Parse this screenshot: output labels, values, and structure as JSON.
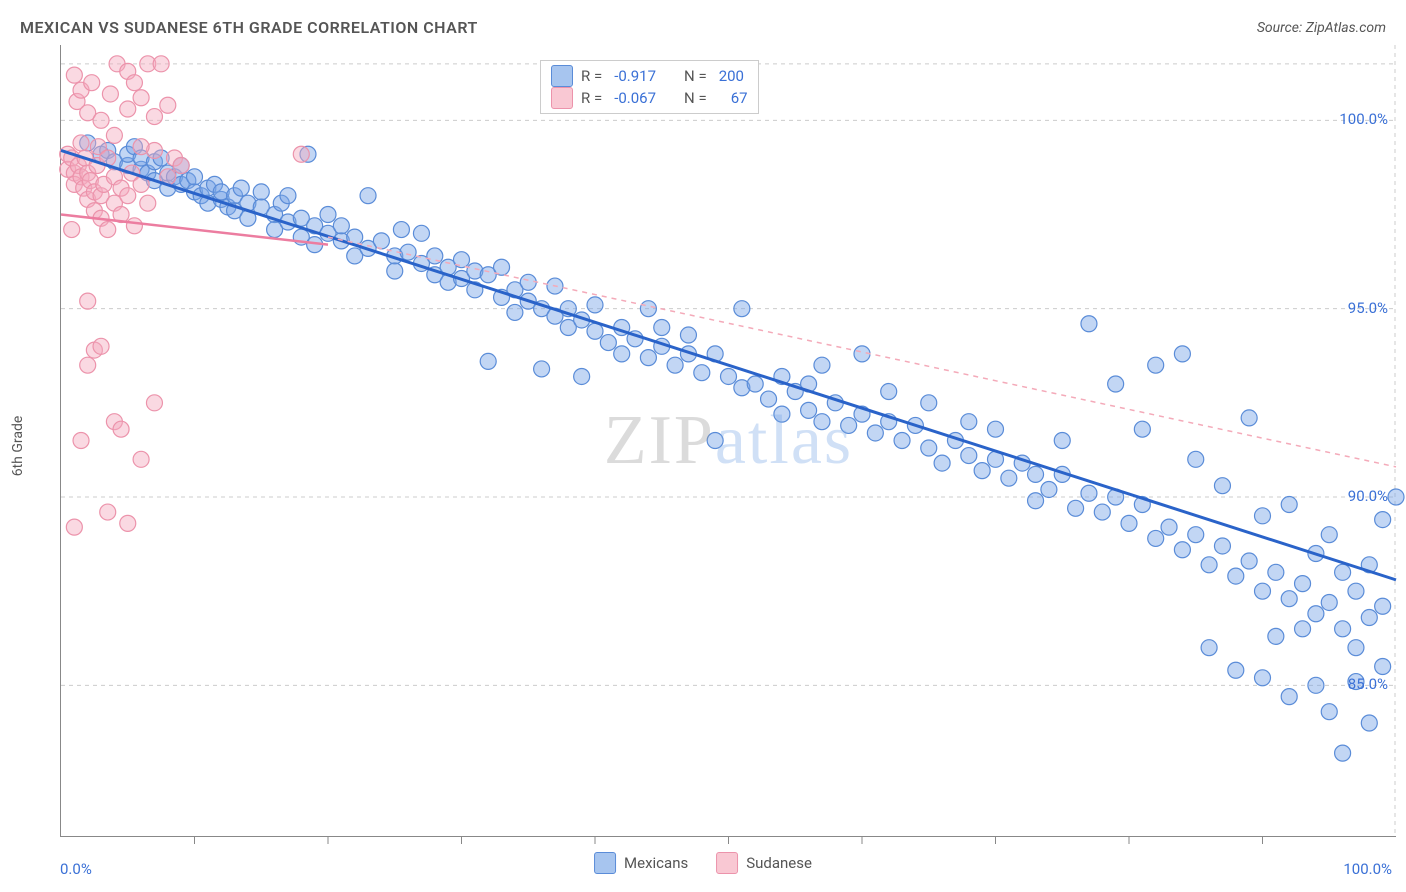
{
  "title": "MEXICAN VS SUDANESE 6TH GRADE CORRELATION CHART",
  "source": "Source: ZipAtlas.com",
  "ylabel": "6th Grade",
  "watermark_zip": "ZIP",
  "watermark_atlas": "atlas",
  "xaxis": {
    "min_label": "0.0%",
    "max_label": "100.0%",
    "min": 0,
    "max": 100
  },
  "yaxis": {
    "min": 81,
    "max": 102,
    "ticks": [
      {
        "v": 100,
        "label": "100.0%"
      },
      {
        "v": 95,
        "label": "95.0%"
      },
      {
        "v": 90,
        "label": "90.0%"
      },
      {
        "v": 85,
        "label": "85.0%"
      }
    ]
  },
  "grid_color": "#cccccc",
  "grid_dash": "4,4",
  "series": [
    {
      "name": "Mexicans",
      "swatch_fill": "#a7c5ef",
      "swatch_stroke": "#5a8cd8",
      "point_fill": "rgba(120,165,230,0.45)",
      "point_stroke": "#5a8cd8",
      "point_r": 8,
      "trend_color": "#2a63c9",
      "trend_width": 3,
      "trend_dash": "",
      "trend_x1": 0,
      "trend_y1": 99.2,
      "trend_x2": 100,
      "trend_y2": 87.8,
      "extrap_dash": "5,5",
      "extrap_x1": 20,
      "extrap_y1": 96.9,
      "extrap_x2": 100,
      "extrap_y2": 90.8,
      "extrap_color": "#f4aab9",
      "R_label": "R =",
      "R": "-0.917",
      "N_label": "N =",
      "N": "200",
      "data": [
        [
          2,
          99.4
        ],
        [
          3,
          99.1
        ],
        [
          3.5,
          99.2
        ],
        [
          4,
          98.9
        ],
        [
          5,
          98.8
        ],
        [
          5,
          99.1
        ],
        [
          5.5,
          99.3
        ],
        [
          6,
          98.7
        ],
        [
          6,
          99.0
        ],
        [
          6.5,
          98.6
        ],
        [
          7,
          98.9
        ],
        [
          7,
          98.4
        ],
        [
          7.5,
          99.0
        ],
        [
          8,
          98.6
        ],
        [
          8,
          98.2
        ],
        [
          8.5,
          98.5
        ],
        [
          9,
          98.3
        ],
        [
          9,
          98.8
        ],
        [
          9.5,
          98.4
        ],
        [
          10,
          98.1
        ],
        [
          10,
          98.5
        ],
        [
          10.5,
          98.0
        ],
        [
          11,
          98.2
        ],
        [
          11,
          97.8
        ],
        [
          11.5,
          98.3
        ],
        [
          12,
          97.9
        ],
        [
          12,
          98.1
        ],
        [
          12.5,
          97.7
        ],
        [
          13,
          98.0
        ],
        [
          13,
          97.6
        ],
        [
          13.5,
          98.2
        ],
        [
          14,
          97.8
        ],
        [
          14,
          97.4
        ],
        [
          15,
          97.7
        ],
        [
          15,
          98.1
        ],
        [
          16,
          97.5
        ],
        [
          16,
          97.1
        ],
        [
          16.5,
          97.8
        ],
        [
          17,
          97.3
        ],
        [
          17,
          98.0
        ],
        [
          18,
          97.4
        ],
        [
          18,
          96.9
        ],
        [
          18.5,
          99.1
        ],
        [
          19,
          97.2
        ],
        [
          19,
          96.7
        ],
        [
          20,
          97.0
        ],
        [
          20,
          97.5
        ],
        [
          21,
          96.8
        ],
        [
          21,
          97.2
        ],
        [
          22,
          96.9
        ],
        [
          22,
          96.4
        ],
        [
          23,
          98.0
        ],
        [
          23,
          96.6
        ],
        [
          24,
          96.8
        ],
        [
          25,
          96.4
        ],
        [
          25,
          96.0
        ],
        [
          25.5,
          97.1
        ],
        [
          26,
          96.5
        ],
        [
          27,
          96.2
        ],
        [
          27,
          97.0
        ],
        [
          28,
          95.9
        ],
        [
          28,
          96.4
        ],
        [
          29,
          95.7
        ],
        [
          29,
          96.1
        ],
        [
          30,
          95.8
        ],
        [
          30,
          96.3
        ],
        [
          31,
          95.5
        ],
        [
          31,
          96.0
        ],
        [
          32,
          93.6
        ],
        [
          32,
          95.9
        ],
        [
          33,
          95.3
        ],
        [
          33,
          96.1
        ],
        [
          34,
          95.5
        ],
        [
          34,
          94.9
        ],
        [
          35,
          95.2
        ],
        [
          35,
          95.7
        ],
        [
          36,
          93.4
        ],
        [
          36,
          95.0
        ],
        [
          37,
          94.8
        ],
        [
          37,
          95.6
        ],
        [
          38,
          94.5
        ],
        [
          38,
          95.0
        ],
        [
          39,
          94.7
        ],
        [
          39,
          93.2
        ],
        [
          40,
          94.4
        ],
        [
          40,
          95.1
        ],
        [
          41,
          94.1
        ],
        [
          42,
          94.5
        ],
        [
          42,
          93.8
        ],
        [
          43,
          94.2
        ],
        [
          44,
          95.0
        ],
        [
          44,
          93.7
        ],
        [
          45,
          94.0
        ],
        [
          45,
          94.5
        ],
        [
          46,
          93.5
        ],
        [
          47,
          93.8
        ],
        [
          47,
          94.3
        ],
        [
          48,
          93.3
        ],
        [
          49,
          93.8
        ],
        [
          49,
          91.5
        ],
        [
          50,
          93.2
        ],
        [
          51,
          95.0
        ],
        [
          51,
          92.9
        ],
        [
          52,
          93.0
        ],
        [
          53,
          92.6
        ],
        [
          54,
          93.2
        ],
        [
          54,
          92.2
        ],
        [
          55,
          92.8
        ],
        [
          56,
          92.3
        ],
        [
          56,
          93.0
        ],
        [
          57,
          92.0
        ],
        [
          57,
          93.5
        ],
        [
          58,
          92.5
        ],
        [
          59,
          91.9
        ],
        [
          60,
          92.2
        ],
        [
          60,
          93.8
        ],
        [
          61,
          91.7
        ],
        [
          62,
          92.0
        ],
        [
          62,
          92.8
        ],
        [
          63,
          91.5
        ],
        [
          64,
          91.9
        ],
        [
          65,
          91.3
        ],
        [
          65,
          92.5
        ],
        [
          66,
          90.9
        ],
        [
          67,
          91.5
        ],
        [
          68,
          91.1
        ],
        [
          68,
          92.0
        ],
        [
          69,
          90.7
        ],
        [
          70,
          91.0
        ],
        [
          70,
          91.8
        ],
        [
          71,
          90.5
        ],
        [
          72,
          90.9
        ],
        [
          73,
          89.9
        ],
        [
          73,
          90.6
        ],
        [
          74,
          90.2
        ],
        [
          75,
          90.6
        ],
        [
          75,
          91.5
        ],
        [
          76,
          89.7
        ],
        [
          77,
          90.1
        ],
        [
          77,
          94.6
        ],
        [
          78,
          89.6
        ],
        [
          79,
          90.0
        ],
        [
          79,
          93.0
        ],
        [
          80,
          89.3
        ],
        [
          81,
          89.8
        ],
        [
          81,
          91.8
        ],
        [
          82,
          88.9
        ],
        [
          82,
          93.5
        ],
        [
          83,
          89.2
        ],
        [
          84,
          88.6
        ],
        [
          84,
          93.8
        ],
        [
          85,
          89.0
        ],
        [
          85,
          91.0
        ],
        [
          86,
          88.2
        ],
        [
          86,
          86.0
        ],
        [
          87,
          88.7
        ],
        [
          87,
          90.3
        ],
        [
          88,
          87.9
        ],
        [
          88,
          85.4
        ],
        [
          89,
          88.3
        ],
        [
          89,
          92.1
        ],
        [
          90,
          87.5
        ],
        [
          90,
          89.5
        ],
        [
          90,
          85.2
        ],
        [
          91,
          88.0
        ],
        [
          91,
          86.3
        ],
        [
          92,
          87.3
        ],
        [
          92,
          89.8
        ],
        [
          92,
          84.7
        ],
        [
          93,
          87.7
        ],
        [
          93,
          86.5
        ],
        [
          94,
          86.9
        ],
        [
          94,
          88.5
        ],
        [
          94,
          85.0
        ],
        [
          95,
          87.2
        ],
        [
          95,
          84.3
        ],
        [
          95,
          89.0
        ],
        [
          96,
          86.5
        ],
        [
          96,
          88.0
        ],
        [
          96,
          83.2
        ],
        [
          97,
          86.0
        ],
        [
          97,
          87.5
        ],
        [
          97,
          85.1
        ],
        [
          98,
          86.8
        ],
        [
          98,
          84.0
        ],
        [
          98,
          88.2
        ],
        [
          99,
          85.5
        ],
        [
          99,
          87.1
        ],
        [
          99,
          89.4
        ],
        [
          100,
          90.0
        ]
      ]
    },
    {
      "name": "Sudanese",
      "swatch_fill": "#f9c8d3",
      "swatch_stroke": "#ec93ab",
      "point_fill": "rgba(245,170,190,0.45)",
      "point_stroke": "#ec93ab",
      "point_r": 8,
      "trend_color": "#ec7da0",
      "trend_width": 2.5,
      "trend_dash": "",
      "trend_x1": 0,
      "trend_y1": 97.5,
      "trend_x2": 20,
      "trend_y2": 96.7,
      "R_label": "R =",
      "R": "-0.067",
      "N_label": "N =",
      "N": "67",
      "data": [
        [
          0.5,
          99.1
        ],
        [
          0.5,
          98.7
        ],
        [
          0.8,
          99.0
        ],
        [
          1,
          101.2
        ],
        [
          1,
          98.6
        ],
        [
          1,
          98.3
        ],
        [
          1.2,
          100.5
        ],
        [
          1.3,
          98.8
        ],
        [
          1.5,
          98.5
        ],
        [
          1.5,
          99.4
        ],
        [
          1.5,
          100.8
        ],
        [
          1.7,
          98.2
        ],
        [
          1.8,
          99.0
        ],
        [
          2,
          98.6
        ],
        [
          2,
          97.9
        ],
        [
          2,
          100.2
        ],
        [
          2.2,
          98.4
        ],
        [
          2.3,
          101.0
        ],
        [
          2.5,
          98.1
        ],
        [
          2.5,
          97.6
        ],
        [
          2.7,
          98.8
        ],
        [
          2.8,
          99.3
        ],
        [
          3,
          98.0
        ],
        [
          3,
          97.4
        ],
        [
          3,
          100.0
        ],
        [
          3.2,
          98.3
        ],
        [
          3.5,
          99.0
        ],
        [
          3.5,
          97.1
        ],
        [
          3.7,
          100.7
        ],
        [
          4,
          98.5
        ],
        [
          4,
          97.8
        ],
        [
          4,
          99.6
        ],
        [
          4.2,
          101.5
        ],
        [
          4.5,
          98.2
        ],
        [
          4.5,
          97.5
        ],
        [
          5,
          100.3
        ],
        [
          5,
          98.0
        ],
        [
          5,
          101.3
        ],
        [
          5.3,
          98.6
        ],
        [
          5.5,
          101.0
        ],
        [
          5.5,
          97.2
        ],
        [
          6,
          100.6
        ],
        [
          6,
          98.3
        ],
        [
          6.5,
          101.5
        ],
        [
          6.5,
          97.8
        ],
        [
          7,
          100.1
        ],
        [
          7,
          99.2
        ],
        [
          7.5,
          101.5
        ],
        [
          8,
          100.4
        ],
        [
          8,
          98.5
        ],
        [
          0.8,
          97.1
        ],
        [
          2,
          95.2
        ],
        [
          1.5,
          91.5
        ],
        [
          2.5,
          93.9
        ],
        [
          3,
          94.0
        ],
        [
          4,
          92.0
        ],
        [
          4.5,
          91.8
        ],
        [
          1,
          89.2
        ],
        [
          5,
          89.3
        ],
        [
          3.5,
          89.6
        ],
        [
          6,
          91.0
        ],
        [
          7,
          92.5
        ],
        [
          2,
          93.5
        ],
        [
          6,
          99.3
        ],
        [
          8.5,
          99.0
        ],
        [
          9,
          98.8
        ],
        [
          18,
          99.1
        ]
      ]
    }
  ],
  "bottom_legend": [
    {
      "label": "Mexicans",
      "fill": "#a7c5ef",
      "stroke": "#5a8cd8"
    },
    {
      "label": "Sudanese",
      "fill": "#f9c8d3",
      "stroke": "#ec93ab"
    }
  ]
}
